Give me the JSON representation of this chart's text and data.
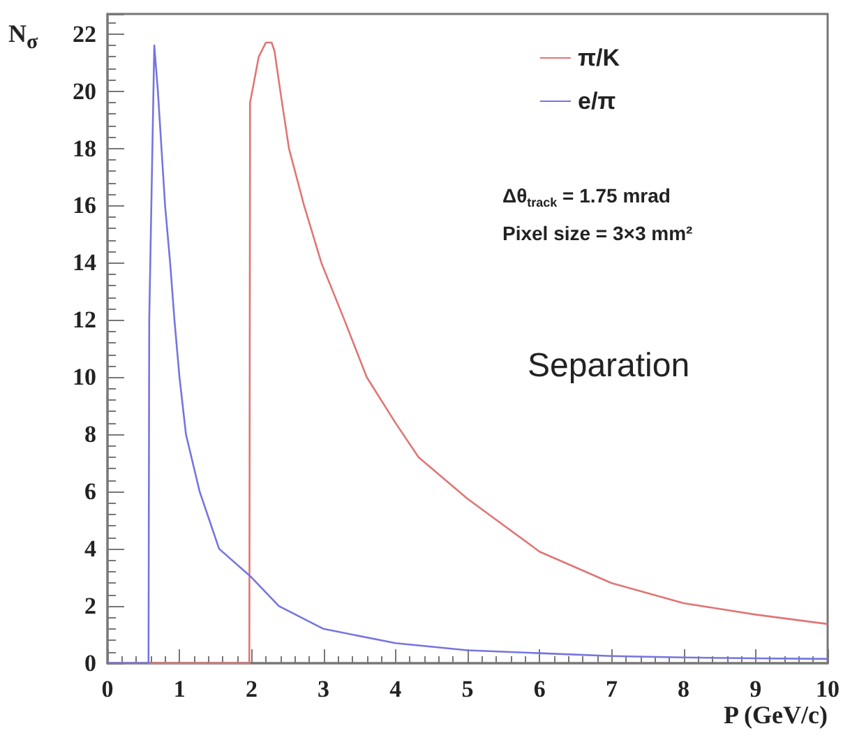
{
  "chart_data": {
    "type": "line",
    "xlabel": "P (GeV/c)",
    "ylabel": "N$_{σ}$",
    "xlim": [
      0,
      10
    ],
    "ylim": [
      0,
      22.7
    ],
    "xticks": [
      0,
      1,
      2,
      3,
      4,
      5,
      6,
      7,
      8,
      9,
      10
    ],
    "yticks": [
      0,
      2,
      4,
      6,
      8,
      10,
      12,
      14,
      16,
      18,
      20,
      22
    ],
    "legend": "top right",
    "grid": false,
    "marker": "none",
    "line_style": "solid",
    "annotations": [
      "Δθ$_{track}$ = 1.75 mrad",
      "Pixel size = 3×3 mm²",
      "Separation"
    ],
    "series": [
      {
        "name": "π/K",
        "color": "#e07575",
        "x": [
          0,
          1.97,
          1.98,
          2.1,
          2.2,
          2.28,
          2.32,
          2.4,
          2.52,
          2.73,
          2.97,
          3.29,
          3.6,
          4.0,
          4.32,
          5,
          6,
          7,
          8,
          9,
          10
        ],
        "values": [
          0,
          0,
          19.6,
          21.2,
          21.7,
          21.7,
          21.4,
          20.0,
          18,
          16,
          14,
          12,
          10,
          8.4,
          7.2,
          5.75,
          3.9,
          2.8,
          2.1,
          1.7,
          1.37
        ]
      },
      {
        "name": "e/π",
        "color": "#7575e0",
        "x": [
          0,
          0.57,
          0.58,
          0.65,
          0.7,
          0.8,
          0.87,
          0.93,
          1.0,
          1.09,
          1.28,
          1.55,
          2.0,
          2.38,
          3.0,
          4.0,
          5.0,
          6.0,
          7.0,
          8.0,
          9.0,
          10.0
        ],
        "values": [
          0,
          0,
          12,
          21.6,
          20,
          16,
          14,
          12,
          10,
          8,
          6,
          4,
          3.0,
          2.0,
          1.2,
          0.7,
          0.45,
          0.35,
          0.25,
          0.2,
          0.17,
          0.15
        ]
      }
    ]
  }
}
